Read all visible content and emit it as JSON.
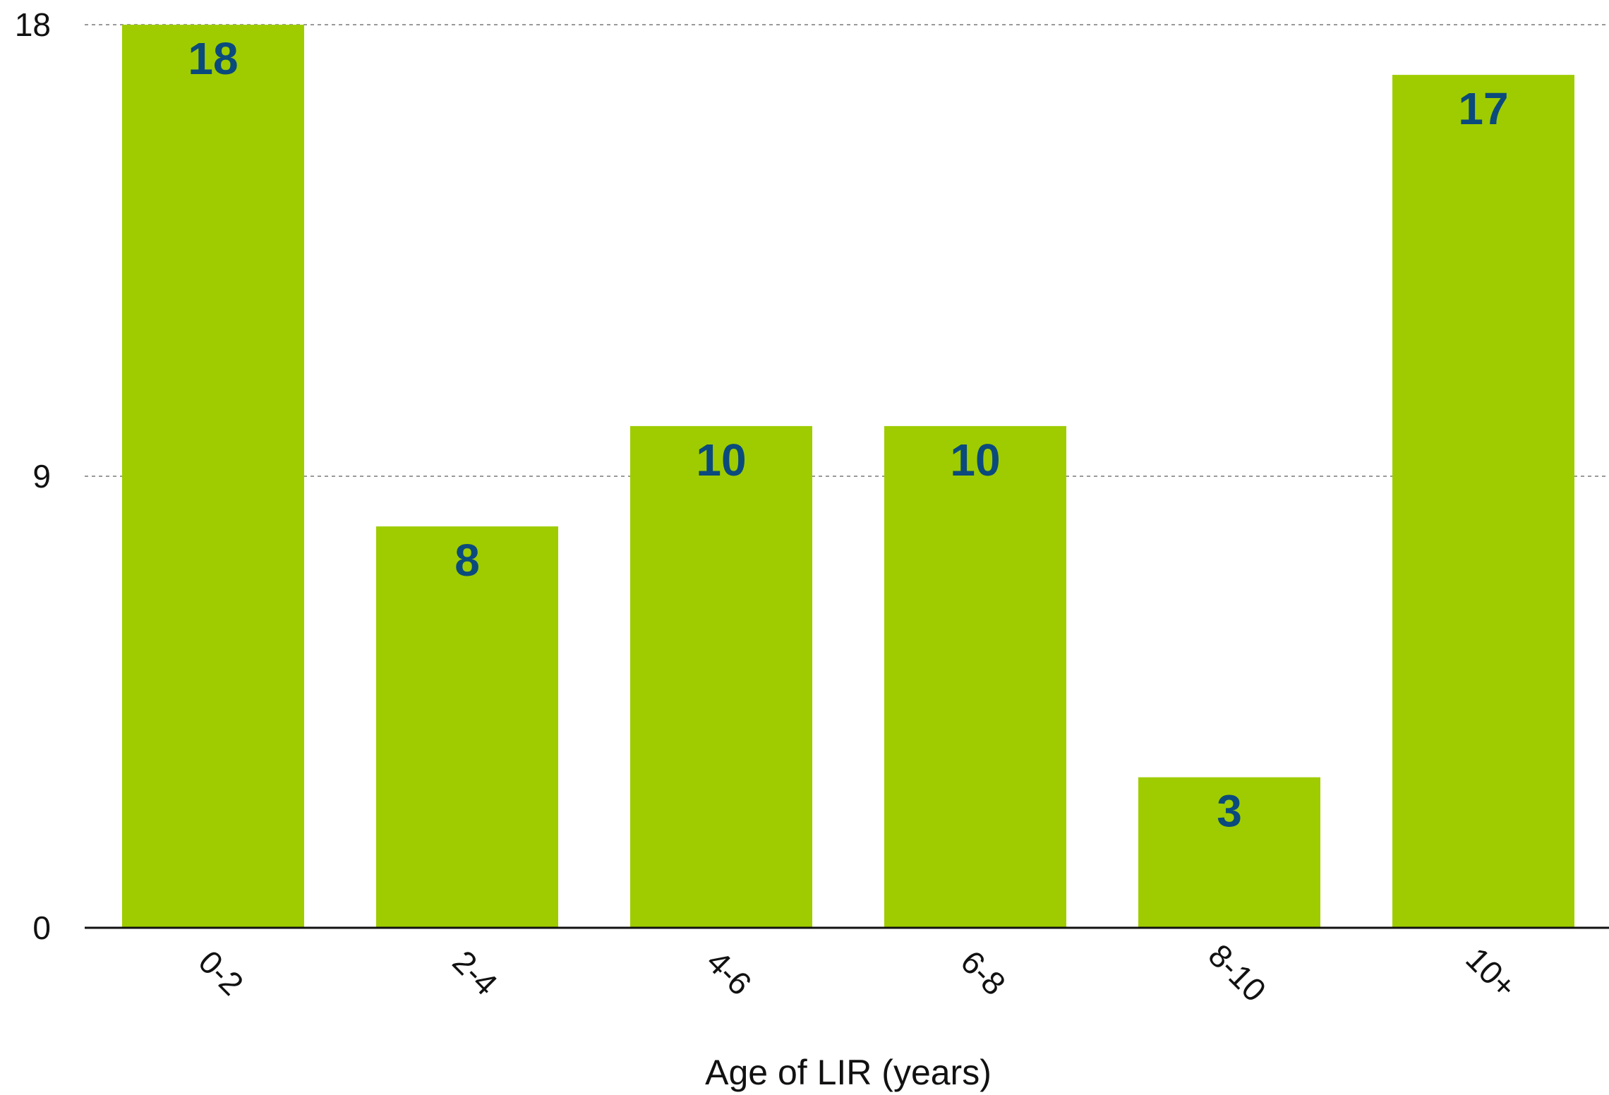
{
  "chart_data": {
    "type": "bar",
    "title": "",
    "xlabel": "Age of LIR (years)",
    "ylabel": "",
    "categories": [
      "0-2",
      "2-4",
      "4-6",
      "6-8",
      "8-10",
      "10+"
    ],
    "values": [
      18,
      8,
      10,
      10,
      3,
      17
    ],
    "ylim": [
      0,
      18
    ],
    "yticks": [
      0,
      9,
      18
    ],
    "grid": true,
    "legend": "none",
    "data_labels": true
  },
  "colors": {
    "bar": "#9ecc00",
    "data_label": "#0b4a7d",
    "gridline": "#9a9a9a",
    "axis": "#111111"
  }
}
